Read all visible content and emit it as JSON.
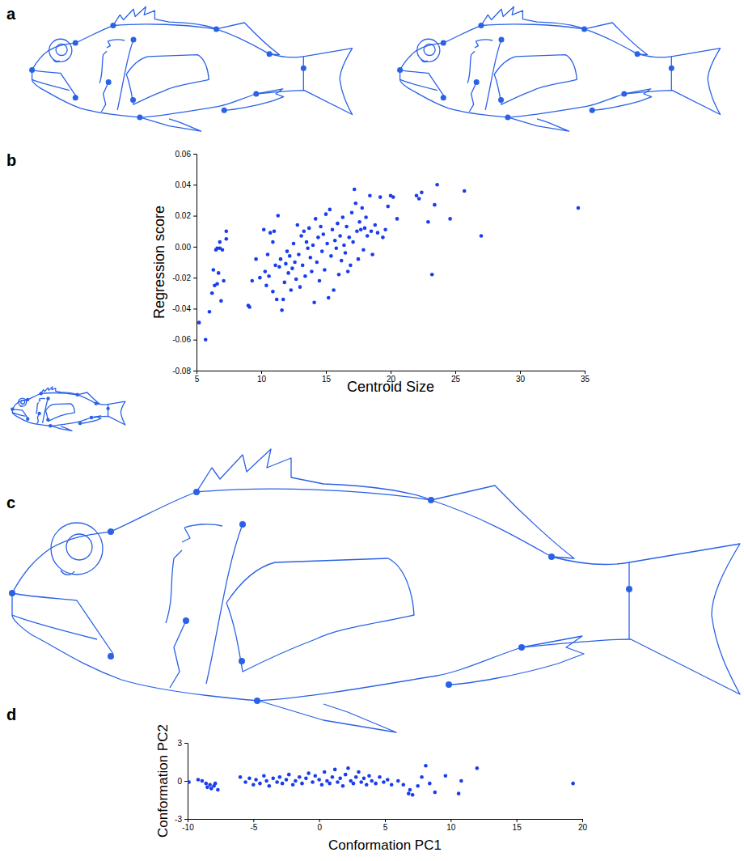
{
  "figure": {
    "panel_labels": [
      "a",
      "b",
      "c",
      "d"
    ]
  },
  "chart_data": [
    {
      "type": "scatter",
      "x_label": "Centroid Size",
      "y_label": "Regression score",
      "color": "#1a3cf0",
      "marker": "circle",
      "xlim": [
        5,
        35
      ],
      "ylim": [
        -0.08,
        0.06
      ],
      "xticks": [
        5,
        10,
        15,
        20,
        25,
        30,
        35
      ],
      "yticks": [
        0.06,
        0.04,
        0.02,
        {
          "value": 0,
          "label": "0.00"
        },
        -0.02,
        -0.04,
        -0.06,
        -0.08
      ],
      "x": [
        5.2,
        5.7,
        6.0,
        6.2,
        6.3,
        6.4,
        6.5,
        6.6,
        6.6,
        6.7,
        6.8,
        6.8,
        6.9,
        7.0,
        7.1,
        7.3,
        7.3,
        9.0,
        9.1,
        9.3,
        9.6,
        9.9,
        10.2,
        10.3,
        10.4,
        10.5,
        10.6,
        10.7,
        10.9,
        10.9,
        11.0,
        11.1,
        11.2,
        11.3,
        11.4,
        11.5,
        11.6,
        11.7,
        11.8,
        11.9,
        12.0,
        12.1,
        12.2,
        12.3,
        12.4,
        12.5,
        12.6,
        12.7,
        12.8,
        12.9,
        13.0,
        13.1,
        13.2,
        13.3,
        13.4,
        13.5,
        13.6,
        13.7,
        13.8,
        13.9,
        14.0,
        14.1,
        14.2,
        14.3,
        14.4,
        14.5,
        14.6,
        14.7,
        14.8,
        14.9,
        15.0,
        15.1,
        15.2,
        15.3,
        15.4,
        15.5,
        15.6,
        15.7,
        15.8,
        15.9,
        16.0,
        16.1,
        16.2,
        16.3,
        16.4,
        16.5,
        16.6,
        16.7,
        16.8,
        16.9,
        17.0,
        17.1,
        17.2,
        17.3,
        17.4,
        17.5,
        17.6,
        17.7,
        17.8,
        17.9,
        18.0,
        18.1,
        18.2,
        18.4,
        18.5,
        18.6,
        18.8,
        19.0,
        19.2,
        19.4,
        19.6,
        19.8,
        20.0,
        20.2,
        20.5,
        22.0,
        22.2,
        22.4,
        22.9,
        23.2,
        23.4,
        23.6,
        24.6,
        25.7,
        27.0,
        34.5
      ],
      "values": [
        -0.049,
        -0.06,
        -0.042,
        -0.03,
        -0.015,
        -0.025,
        -0.002,
        -0.001,
        -0.024,
        -0.017,
        0.003,
        -0.001,
        -0.035,
        -0.002,
        -0.022,
        0.005,
        0.01,
        -0.038,
        -0.039,
        -0.022,
        -0.008,
        -0.02,
        0.011,
        -0.016,
        -0.025,
        -0.005,
        -0.019,
        0.009,
        0.003,
        -0.029,
        0.01,
        -0.012,
        -0.034,
        0.02,
        -0.013,
        -0.008,
        -0.041,
        -0.034,
        -0.023,
        -0.011,
        -0.003,
        -0.017,
        -0.006,
        -0.028,
        -0.014,
        0.002,
        -0.01,
        -0.021,
        0.014,
        -0.005,
        -0.026,
        0.007,
        -0.012,
        0.01,
        -0.019,
        0.003,
        -0.001,
        0.012,
        -0.007,
        -0.016,
        0.001,
        -0.036,
        0.018,
        -0.01,
        0.006,
        -0.022,
        0.013,
        -0.003,
        0.008,
        -0.015,
        0.021,
        0.002,
        -0.033,
        0.024,
        -0.006,
        0.011,
        -0.028,
        0.004,
        -0.001,
        0.015,
        -0.018,
        0.007,
        -0.009,
        0.019,
        0.001,
        -0.004,
        0.013,
        -0.016,
        0.006,
        -0.012,
        0.022,
        0.003,
        0.037,
        0.028,
        0.01,
        -0.008,
        0.016,
        0.011,
        0.025,
        -0.002,
        0.012,
        0.019,
        0.007,
        0.033,
        0.01,
        -0.005,
        0.014,
        0.009,
        0.032,
        0.006,
        0.011,
        0.026,
        0.033,
        0.032,
        0.018,
        0.033,
        0.031,
        0.035,
        0.016,
        -0.018,
        0.027,
        0.04,
        0.018,
        0.036,
        0.007,
        0.025
      ]
    },
    {
      "type": "scatter",
      "x_label": "Conformation PC1",
      "y_label": "Conformation PC2",
      "color": "#1a3cf0",
      "marker": "circle",
      "xlim": [
        -10,
        20
      ],
      "ylim": [
        -3,
        3
      ],
      "xticks": [
        -10,
        -5,
        0,
        5,
        10,
        15,
        20
      ],
      "yticks": [
        3,
        0,
        -3
      ],
      "x": [
        -9.9,
        -9.2,
        -8.9,
        -8.6,
        -8.5,
        -8.3,
        -8.2,
        -8.0,
        -7.9,
        -7.7,
        -6.0,
        -5.6,
        -5.3,
        -5.0,
        -4.8,
        -4.5,
        -4.2,
        -4.0,
        -3.8,
        -3.5,
        -3.2,
        -3.0,
        -2.8,
        -2.5,
        -2.3,
        -2.0,
        -1.8,
        -1.5,
        -1.3,
        -1.0,
        -0.8,
        -0.5,
        -0.3,
        0,
        0.2,
        0.4,
        0.6,
        0.8,
        1.0,
        1.2,
        1.4,
        1.6,
        1.8,
        2.0,
        2.2,
        2.4,
        2.6,
        2.8,
        3.0,
        3.2,
        3.4,
        3.6,
        3.8,
        4.0,
        4.3,
        4.6,
        4.9,
        5.2,
        5.5,
        6.0,
        6.4,
        6.8,
        6.9,
        7.1,
        7.5,
        7.8,
        8.1,
        8.4,
        8.8,
        9.6,
        10.6,
        10.8,
        12.0,
        19.3
      ],
      "values": [
        -0.1,
        0.1,
        0,
        -0.2,
        -0.5,
        -0.3,
        -0.6,
        -0.4,
        -0.2,
        -0.7,
        0.3,
        -0.1,
        0.2,
        -0.3,
        0.1,
        -0.2,
        0.4,
        0,
        -0.4,
        0.2,
        -0.1,
        0.3,
        -0.2,
        0.1,
        0.5,
        -0.3,
        0,
        0.3,
        -0.2,
        0.2,
        0.6,
        -0.1,
        0.4,
        0.1,
        -0.3,
        0.7,
        0,
        -0.2,
        0.3,
        0.9,
        -0.1,
        0.2,
        -0.4,
        0.5,
        1.0,
        0,
        -0.2,
        0.3,
        0.7,
        -0.1,
        0.2,
        -0.3,
        0.4,
        0,
        -0.2,
        0.3,
        -0.1,
        0.1,
        -0.3,
        0,
        -0.3,
        -1.0,
        -0.7,
        -1.1,
        -0.4,
        0.3,
        1.2,
        -0.2,
        -0.9,
        0.4,
        -1.0,
        0,
        1.0,
        -0.2
      ]
    }
  ]
}
